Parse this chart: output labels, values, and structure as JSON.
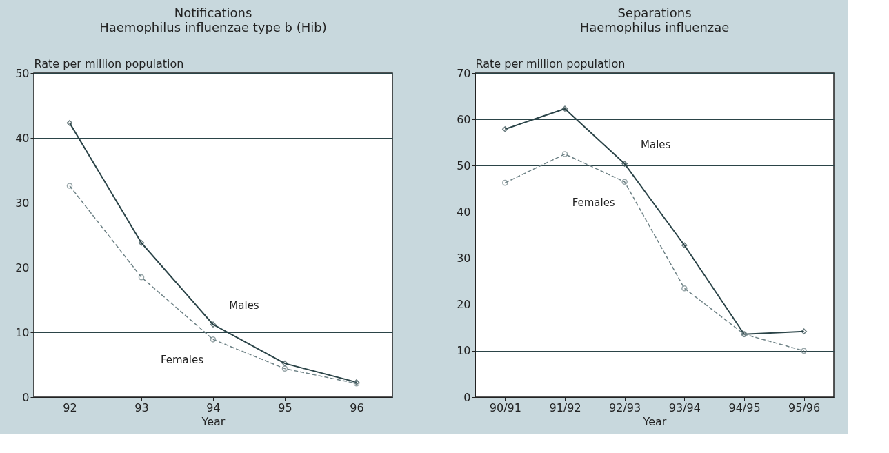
{
  "chart_data": [
    {
      "type": "line",
      "title": "Notifications",
      "subtitle": "Haemophilus influenzae type b (Hib)",
      "xlabel": "Year",
      "ylabel": "Rate per million population",
      "categories": [
        "92",
        "93",
        "94",
        "95",
        "96"
      ],
      "series": [
        {
          "name": "Males",
          "color": "#2b4448",
          "marker": "diamond",
          "line_style": "solid",
          "values": [
            42.3,
            23.8,
            11.2,
            5.2,
            2.3
          ]
        },
        {
          "name": "Females",
          "color": "#6e8286",
          "marker": "circle",
          "line_style": "dashed",
          "values": [
            32.6,
            18.5,
            8.9,
            4.4,
            2.1
          ]
        }
      ],
      "ylim": [
        0,
        50
      ],
      "yticks": [
        0,
        10,
        20,
        30,
        40,
        50
      ],
      "grid": "y",
      "legend": false
    },
    {
      "type": "line",
      "title": "Separations",
      "subtitle": "Haemophilus influenzae",
      "xlabel": "Year",
      "ylabel": "Rate per million population",
      "categories": [
        "90/91",
        "91/92",
        "92/93",
        "93/94",
        "94/95",
        "95/96"
      ],
      "series": [
        {
          "name": "Males",
          "color": "#2b4448",
          "marker": "diamond",
          "line_style": "solid",
          "values": [
            57.9,
            62.3,
            50.4,
            32.8,
            13.6,
            14.2
          ]
        },
        {
          "name": "Females",
          "color": "#6e8286",
          "marker": "circle",
          "line_style": "dashed",
          "values": [
            46.3,
            52.5,
            46.5,
            23.5,
            13.6,
            10.0
          ]
        }
      ],
      "ylim": [
        0,
        70
      ],
      "yticks": [
        0,
        10,
        20,
        30,
        40,
        50,
        60,
        70
      ],
      "grid": "y",
      "legend": false
    }
  ]
}
